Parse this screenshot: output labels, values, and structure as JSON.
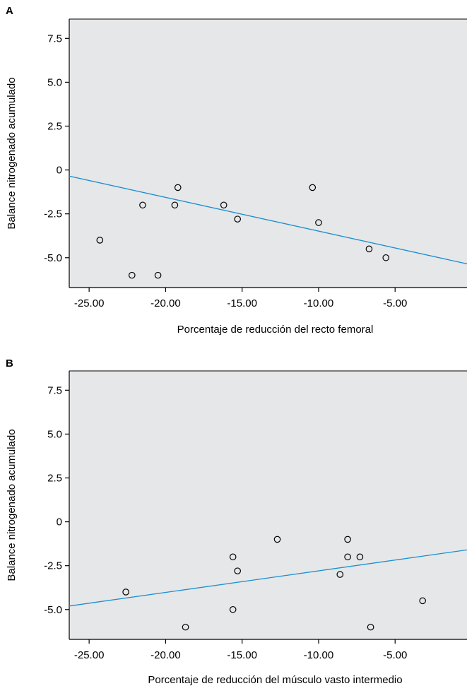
{
  "chart_data": [
    {
      "type": "scatter",
      "panel": "A",
      "xlabel": "Porcentaje de reducción del recto femoral",
      "ylabel": "Balance nitrogenado acumulado",
      "xlim": [
        -26.3,
        -0.3
      ],
      "ylim": [
        -6.7,
        8.6
      ],
      "xticks": [
        -25,
        -20,
        -15,
        -10,
        -5
      ],
      "xtick_labels": [
        "-25.00",
        "-20.00",
        "-15.00",
        "-10.00",
        "-5.00"
      ],
      "yticks": [
        -5,
        -2.5,
        0,
        2.5,
        5,
        7.5
      ],
      "ytick_labels": [
        "-5.0",
        "-2.5",
        "0",
        "2.5",
        "5.0",
        "7.5"
      ],
      "points": [
        {
          "x": -24.3,
          "y": -4.0
        },
        {
          "x": -22.2,
          "y": -6.0
        },
        {
          "x": -21.5,
          "y": -2.0
        },
        {
          "x": -20.5,
          "y": -6.0
        },
        {
          "x": -19.4,
          "y": -2.0
        },
        {
          "x": -19.2,
          "y": -1.0
        },
        {
          "x": -16.2,
          "y": -2.0
        },
        {
          "x": -15.3,
          "y": -2.8
        },
        {
          "x": -10.4,
          "y": -1.0
        },
        {
          "x": -10.0,
          "y": -3.0
        },
        {
          "x": -6.7,
          "y": -4.5
        },
        {
          "x": -5.6,
          "y": -5.0
        }
      ],
      "fit_line": {
        "x": [
          -26.3,
          -0.3
        ],
        "y": [
          -0.35,
          -5.35
        ]
      },
      "line_color": "#1a8fd1",
      "plot_bg": "#e6e7e8",
      "grid": false
    },
    {
      "type": "scatter",
      "panel": "B",
      "xlabel": "Porcentaje de reducción del músculo vasto intermedio",
      "ylabel": "Balance nitrogenado acumulado",
      "xlim": [
        -26.3,
        -0.3
      ],
      "ylim": [
        -6.7,
        8.6
      ],
      "xticks": [
        -25,
        -20,
        -15,
        -10,
        -5
      ],
      "xtick_labels": [
        "-25.00",
        "-20.00",
        "-15.00",
        "-10.00",
        "-5.00"
      ],
      "yticks": [
        -5,
        -2.5,
        0,
        2.5,
        5,
        7.5
      ],
      "ytick_labels": [
        "-5.0",
        "-2.5",
        "0",
        "2.5",
        "5.0",
        "7.5"
      ],
      "points": [
        {
          "x": -22.6,
          "y": -4.0
        },
        {
          "x": -18.7,
          "y": -6.0
        },
        {
          "x": -15.6,
          "y": -2.0
        },
        {
          "x": -15.6,
          "y": -5.0
        },
        {
          "x": -15.3,
          "y": -2.8
        },
        {
          "x": -12.7,
          "y": -1.0
        },
        {
          "x": -8.6,
          "y": -3.0
        },
        {
          "x": -8.1,
          "y": -1.0
        },
        {
          "x": -8.1,
          "y": -2.0
        },
        {
          "x": -7.3,
          "y": -2.0
        },
        {
          "x": -6.6,
          "y": -6.0
        },
        {
          "x": -3.2,
          "y": -4.5
        }
      ],
      "fit_line": {
        "x": [
          -26.3,
          -0.3
        ],
        "y": [
          -4.8,
          -1.6
        ]
      },
      "line_color": "#1a8fd1",
      "plot_bg": "#e6e7e8",
      "grid": false
    }
  ]
}
